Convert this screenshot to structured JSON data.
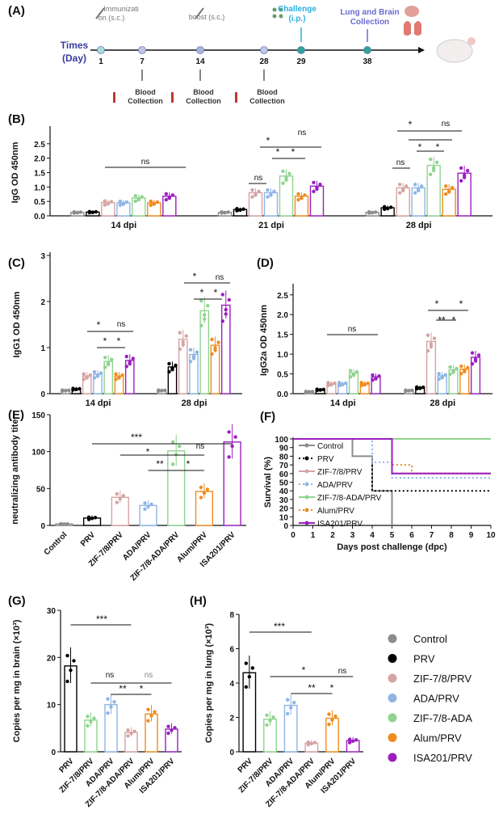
{
  "colors": {
    "control": "#8c8c8c",
    "prv": "#000000",
    "zif": "#d6a3a3",
    "ada": "#8fb5e6",
    "zifada": "#8fd48f",
    "alum": "#f08c1f",
    "isa": "#9b1fc0"
  },
  "timeline": {
    "panel": "(A)",
    "axis_label_1": "Times",
    "axis_label_2": "(Day)",
    "days": [
      "1",
      "7",
      "14",
      "28",
      "29",
      "38"
    ],
    "top_labels": [
      {
        "text": "Immunizati",
        "text2": "on (s.c.)",
        "day": "1",
        "icon": "syringe-icon"
      },
      {
        "text": "boost (s.c.)",
        "text2": "",
        "day": "14",
        "icon": "syringe-icon"
      },
      {
        "text": "Challenge",
        "text2": "(i.p.)",
        "day": "29",
        "icon": "virus-icon"
      },
      {
        "text": "Lung and Brain",
        "text2": "Collection",
        "day": "38",
        "icon": "organ-icon"
      }
    ],
    "bottom_labels": [
      {
        "text": "Blood",
        "text2": "Collection",
        "day": "7"
      },
      {
        "text": "Blood",
        "text2": "Collection",
        "day": "14"
      },
      {
        "text": "Blood",
        "text2": "Collection",
        "day": "28"
      }
    ]
  },
  "legend": {
    "entries": [
      "Control",
      "PRV",
      "ZIF-7/8/PRV",
      "ADA/PRV",
      "ZIF-7/8-ADA",
      "Alum/PRV",
      "ISA201/PRV"
    ],
    "color_keys": [
      "control",
      "prv",
      "zif",
      "ada",
      "zifada",
      "alum",
      "isa"
    ]
  },
  "chart_data": [
    {
      "panel": "(B)",
      "type": "bar",
      "ylabel": "IgG OD 450nm",
      "xlabel": "",
      "ylim": [
        0,
        3.0
      ],
      "yticks": [
        "0.0",
        "0.5",
        "1.0",
        "1.5",
        "2.0",
        "2.5"
      ],
      "categories": [
        "14 dpi",
        "21 dpi",
        "28 dpi"
      ],
      "series": [
        {
          "color": "control",
          "values": [
            0.12,
            0.12,
            0.12
          ]
        },
        {
          "color": "prv",
          "values": [
            0.13,
            0.22,
            0.28
          ]
        },
        {
          "color": "zif",
          "values": [
            0.46,
            0.8,
            0.97
          ]
        },
        {
          "color": "ada",
          "values": [
            0.45,
            0.8,
            0.97
          ]
        },
        {
          "color": "zifada",
          "values": [
            0.62,
            1.38,
            1.75
          ]
        },
        {
          "color": "alum",
          "values": [
            0.45,
            0.68,
            0.92
          ]
        },
        {
          "color": "isa",
          "values": [
            0.68,
            1.03,
            1.48
          ]
        }
      ],
      "annotations": [
        "ns",
        "*",
        "ns",
        "*",
        "*",
        "ns",
        "*",
        "ns",
        "*",
        "*",
        "ns"
      ]
    },
    {
      "panel": "(C)",
      "type": "bar",
      "ylabel": "IgG1 OD 450nm",
      "xlabel": "",
      "ylim": [
        0,
        3.0
      ],
      "yticks": [
        "0",
        "1",
        "2",
        "3"
      ],
      "categories": [
        "14 dpi",
        "28 dpi"
      ],
      "series": [
        {
          "color": "control",
          "values": [
            0.07,
            0.07
          ]
        },
        {
          "color": "prv",
          "values": [
            0.1,
            0.58
          ]
        },
        {
          "color": "zif",
          "values": [
            0.38,
            1.18
          ]
        },
        {
          "color": "ada",
          "values": [
            0.42,
            0.85
          ]
        },
        {
          "color": "zifada",
          "values": [
            0.7,
            1.8
          ]
        },
        {
          "color": "alum",
          "values": [
            0.38,
            1.05
          ]
        },
        {
          "color": "isa",
          "values": [
            0.72,
            1.92
          ]
        }
      ],
      "annotations": [
        "*",
        "ns",
        "*",
        "*",
        "*",
        "ns",
        "*",
        "*"
      ]
    },
    {
      "panel": "(D)",
      "type": "bar",
      "ylabel": "IgG2a OD 450nm",
      "xlabel": "",
      "ylim": [
        0,
        2.7
      ],
      "yticks": [
        "0.0",
        "0.5",
        "1.0",
        "1.5",
        "2.0",
        "2.5"
      ],
      "categories": [
        "14 dpi",
        "28 dpi"
      ],
      "series": [
        {
          "color": "control",
          "values": [
            0.05,
            0.08
          ]
        },
        {
          "color": "prv",
          "values": [
            0.1,
            0.15
          ]
        },
        {
          "color": "zif",
          "values": [
            0.25,
            1.32
          ]
        },
        {
          "color": "ada",
          "values": [
            0.25,
            0.45
          ]
        },
        {
          "color": "zifada",
          "values": [
            0.52,
            0.6
          ]
        },
        {
          "color": "alum",
          "values": [
            0.25,
            0.62
          ]
        },
        {
          "color": "isa",
          "values": [
            0.42,
            0.92
          ]
        }
      ],
      "annotations": [
        "ns",
        "*",
        "*",
        "**",
        "*"
      ]
    },
    {
      "panel": "(E)",
      "type": "bar",
      "ylabel": "neutralizing antibody titer",
      "xlabel": "",
      "ylim": [
        0,
        150
      ],
      "yticks": [
        "0",
        "50",
        "100",
        "150"
      ],
      "categories": [
        "Control",
        "PRV",
        "ZIF-7/8/PRV",
        "ADA/PRV",
        "ZIF-7/8-ADA/PRV",
        "Alum/PRV",
        "ISA201/PRV"
      ],
      "color_keys": [
        "control",
        "prv",
        "zif",
        "ada",
        "zifada",
        "alum",
        "isa"
      ],
      "values": [
        2,
        10,
        38,
        27,
        101,
        46,
        113
      ],
      "annotations": [
        "***",
        "*",
        "ns",
        "**",
        "*"
      ]
    },
    {
      "panel": "(F)",
      "type": "line",
      "ylabel": "Survival (%)",
      "xlabel": "Days post challenge (dpc)",
      "xlim": [
        0,
        10
      ],
      "ylim": [
        0,
        100
      ],
      "xticks": [
        "0",
        "1",
        "2",
        "3",
        "4",
        "5",
        "6",
        "7",
        "8",
        "9",
        "10"
      ],
      "yticks": [
        "0",
        "10",
        "20",
        "30",
        "40",
        "50",
        "60",
        "70",
        "80",
        "90",
        "100"
      ],
      "series": [
        {
          "name": "Control",
          "color": "control",
          "dash": "solid",
          "x": [
            0,
            3,
            3,
            4,
            4,
            5,
            5
          ],
          "y": [
            100,
            100,
            80,
            80,
            40,
            40,
            0
          ]
        },
        {
          "name": "PRV",
          "color": "prv",
          "dash": "dot",
          "x": [
            0,
            4,
            4,
            10
          ],
          "y": [
            100,
            100,
            40,
            40
          ]
        },
        {
          "name": "ZIF-7/8/PRV",
          "color": "zif",
          "dash": "solid",
          "x": [
            0,
            5,
            5,
            10
          ],
          "y": [
            100,
            100,
            60,
            60
          ]
        },
        {
          "name": "ADA/PRV",
          "color": "ada",
          "dash": "dot",
          "x": [
            0,
            4,
            4,
            5,
            5,
            10
          ],
          "y": [
            100,
            100,
            73,
            73,
            55,
            55
          ]
        },
        {
          "name": "ZIF-7/8-ADA/PRV",
          "color": "zifada",
          "dash": "solid",
          "x": [
            0,
            10
          ],
          "y": [
            100,
            100
          ]
        },
        {
          "name": "Alum/PRV",
          "color": "alum",
          "dash": "dot",
          "x": [
            0,
            5,
            5,
            6,
            6,
            10
          ],
          "y": [
            100,
            100,
            70,
            70,
            60,
            60
          ]
        },
        {
          "name": "ISA201/PRV",
          "color": "isa",
          "dash": "solid",
          "x": [
            0,
            5,
            5,
            10
          ],
          "y": [
            100,
            100,
            60,
            60
          ]
        }
      ]
    },
    {
      "panel": "(G)",
      "type": "bar",
      "ylabel": "Copies per mg in brain (×10³)",
      "xlabel": "",
      "ylim": [
        0,
        30
      ],
      "yticks": [
        "0",
        "10",
        "20",
        "30"
      ],
      "categories": [
        "PRV",
        "ZIF-7/8/PRV",
        "ADA/PRV",
        "ZIF-7/8-ADA/PRV",
        "Alum/PRV",
        "ISA201/PRV"
      ],
      "color_keys": [
        "prv",
        "zifada",
        "ada",
        "zif",
        "alum",
        "isa"
      ],
      "values": [
        18.2,
        6.7,
        10.0,
        4.1,
        8.0,
        4.8
      ],
      "annotations": [
        "***",
        "ns",
        "ns",
        "**",
        "*"
      ]
    },
    {
      "panel": "(H)",
      "type": "bar",
      "ylabel": "Copies per mg in lung (×10³)",
      "xlabel": "",
      "ylim": [
        0,
        8
      ],
      "yticks": [
        "0",
        "2",
        "4",
        "6",
        "8"
      ],
      "categories": [
        "PRV",
        "ZIF-7/8/PRV",
        "ADA/PRV",
        "ZIF-7/8-ADA/PRV",
        "Alum/PRV",
        "ISA201/PRV"
      ],
      "color_keys": [
        "prv",
        "zifada",
        "ada",
        "zif",
        "alum",
        "isa"
      ],
      "values": [
        4.6,
        1.9,
        2.7,
        0.5,
        1.95,
        0.65
      ],
      "annotations": [
        "***",
        "*",
        "ns",
        "**",
        "*"
      ]
    }
  ]
}
